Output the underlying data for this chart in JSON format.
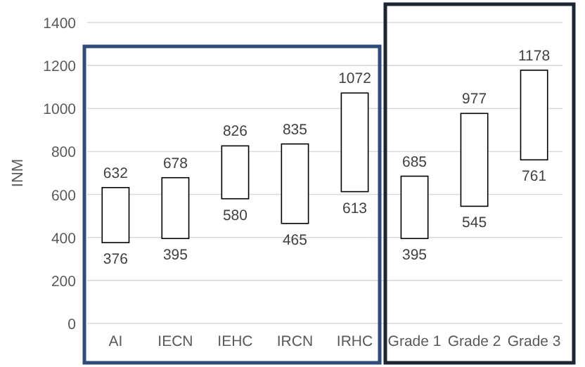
{
  "chart_data": {
    "type": "bar",
    "ylabel": "INM",
    "categories": [
      "AI",
      "IECN",
      "IEHC",
      "IRCN",
      "IRHC",
      "Grade 1",
      "Grade 2",
      "Grade 3"
    ],
    "base": [
      376,
      395,
      580,
      465,
      613,
      395,
      545,
      761
    ],
    "values": [
      256,
      283,
      246,
      370,
      459,
      290,
      432,
      417
    ],
    "color": "#ffffff",
    "ylim": [
      0,
      1400
    ],
    "yticks": [
      0,
      200,
      400,
      600,
      800,
      1000,
      1200,
      1400
    ],
    "grid": "y",
    "annotations": [
      {
        "text": "632",
        "x": "AI",
        "y": 632
      },
      {
        "text": "376",
        "x": "AI",
        "y": 376
      },
      {
        "text": "678",
        "x": "IECN",
        "y": 678
      },
      {
        "text": "395",
        "x": "IECN",
        "y": 395
      },
      {
        "text": "826",
        "x": "IEHC",
        "y": 826
      },
      {
        "text": "580",
        "x": "IEHC",
        "y": 580
      },
      {
        "text": "835",
        "x": "IRCN",
        "y": 835
      },
      {
        "text": "465",
        "x": "IRCN",
        "y": 465
      },
      {
        "text": "1072",
        "x": "IRHC",
        "y": 1072
      },
      {
        "text": "613",
        "x": "IRHC",
        "y": 613
      },
      {
        "text": "685",
        "x": "Grade 1",
        "y": 685
      },
      {
        "text": "395",
        "x": "Grade 1",
        "y": 395
      },
      {
        "text": "977",
        "x": "Grade 2",
        "y": 977
      },
      {
        "text": "545",
        "x": "Grade 2",
        "y": 545
      },
      {
        "text": "1178",
        "x": "Grade 3",
        "y": 1178
      },
      {
        "text": "761",
        "x": "Grade 3",
        "y": 761
      }
    ]
  }
}
